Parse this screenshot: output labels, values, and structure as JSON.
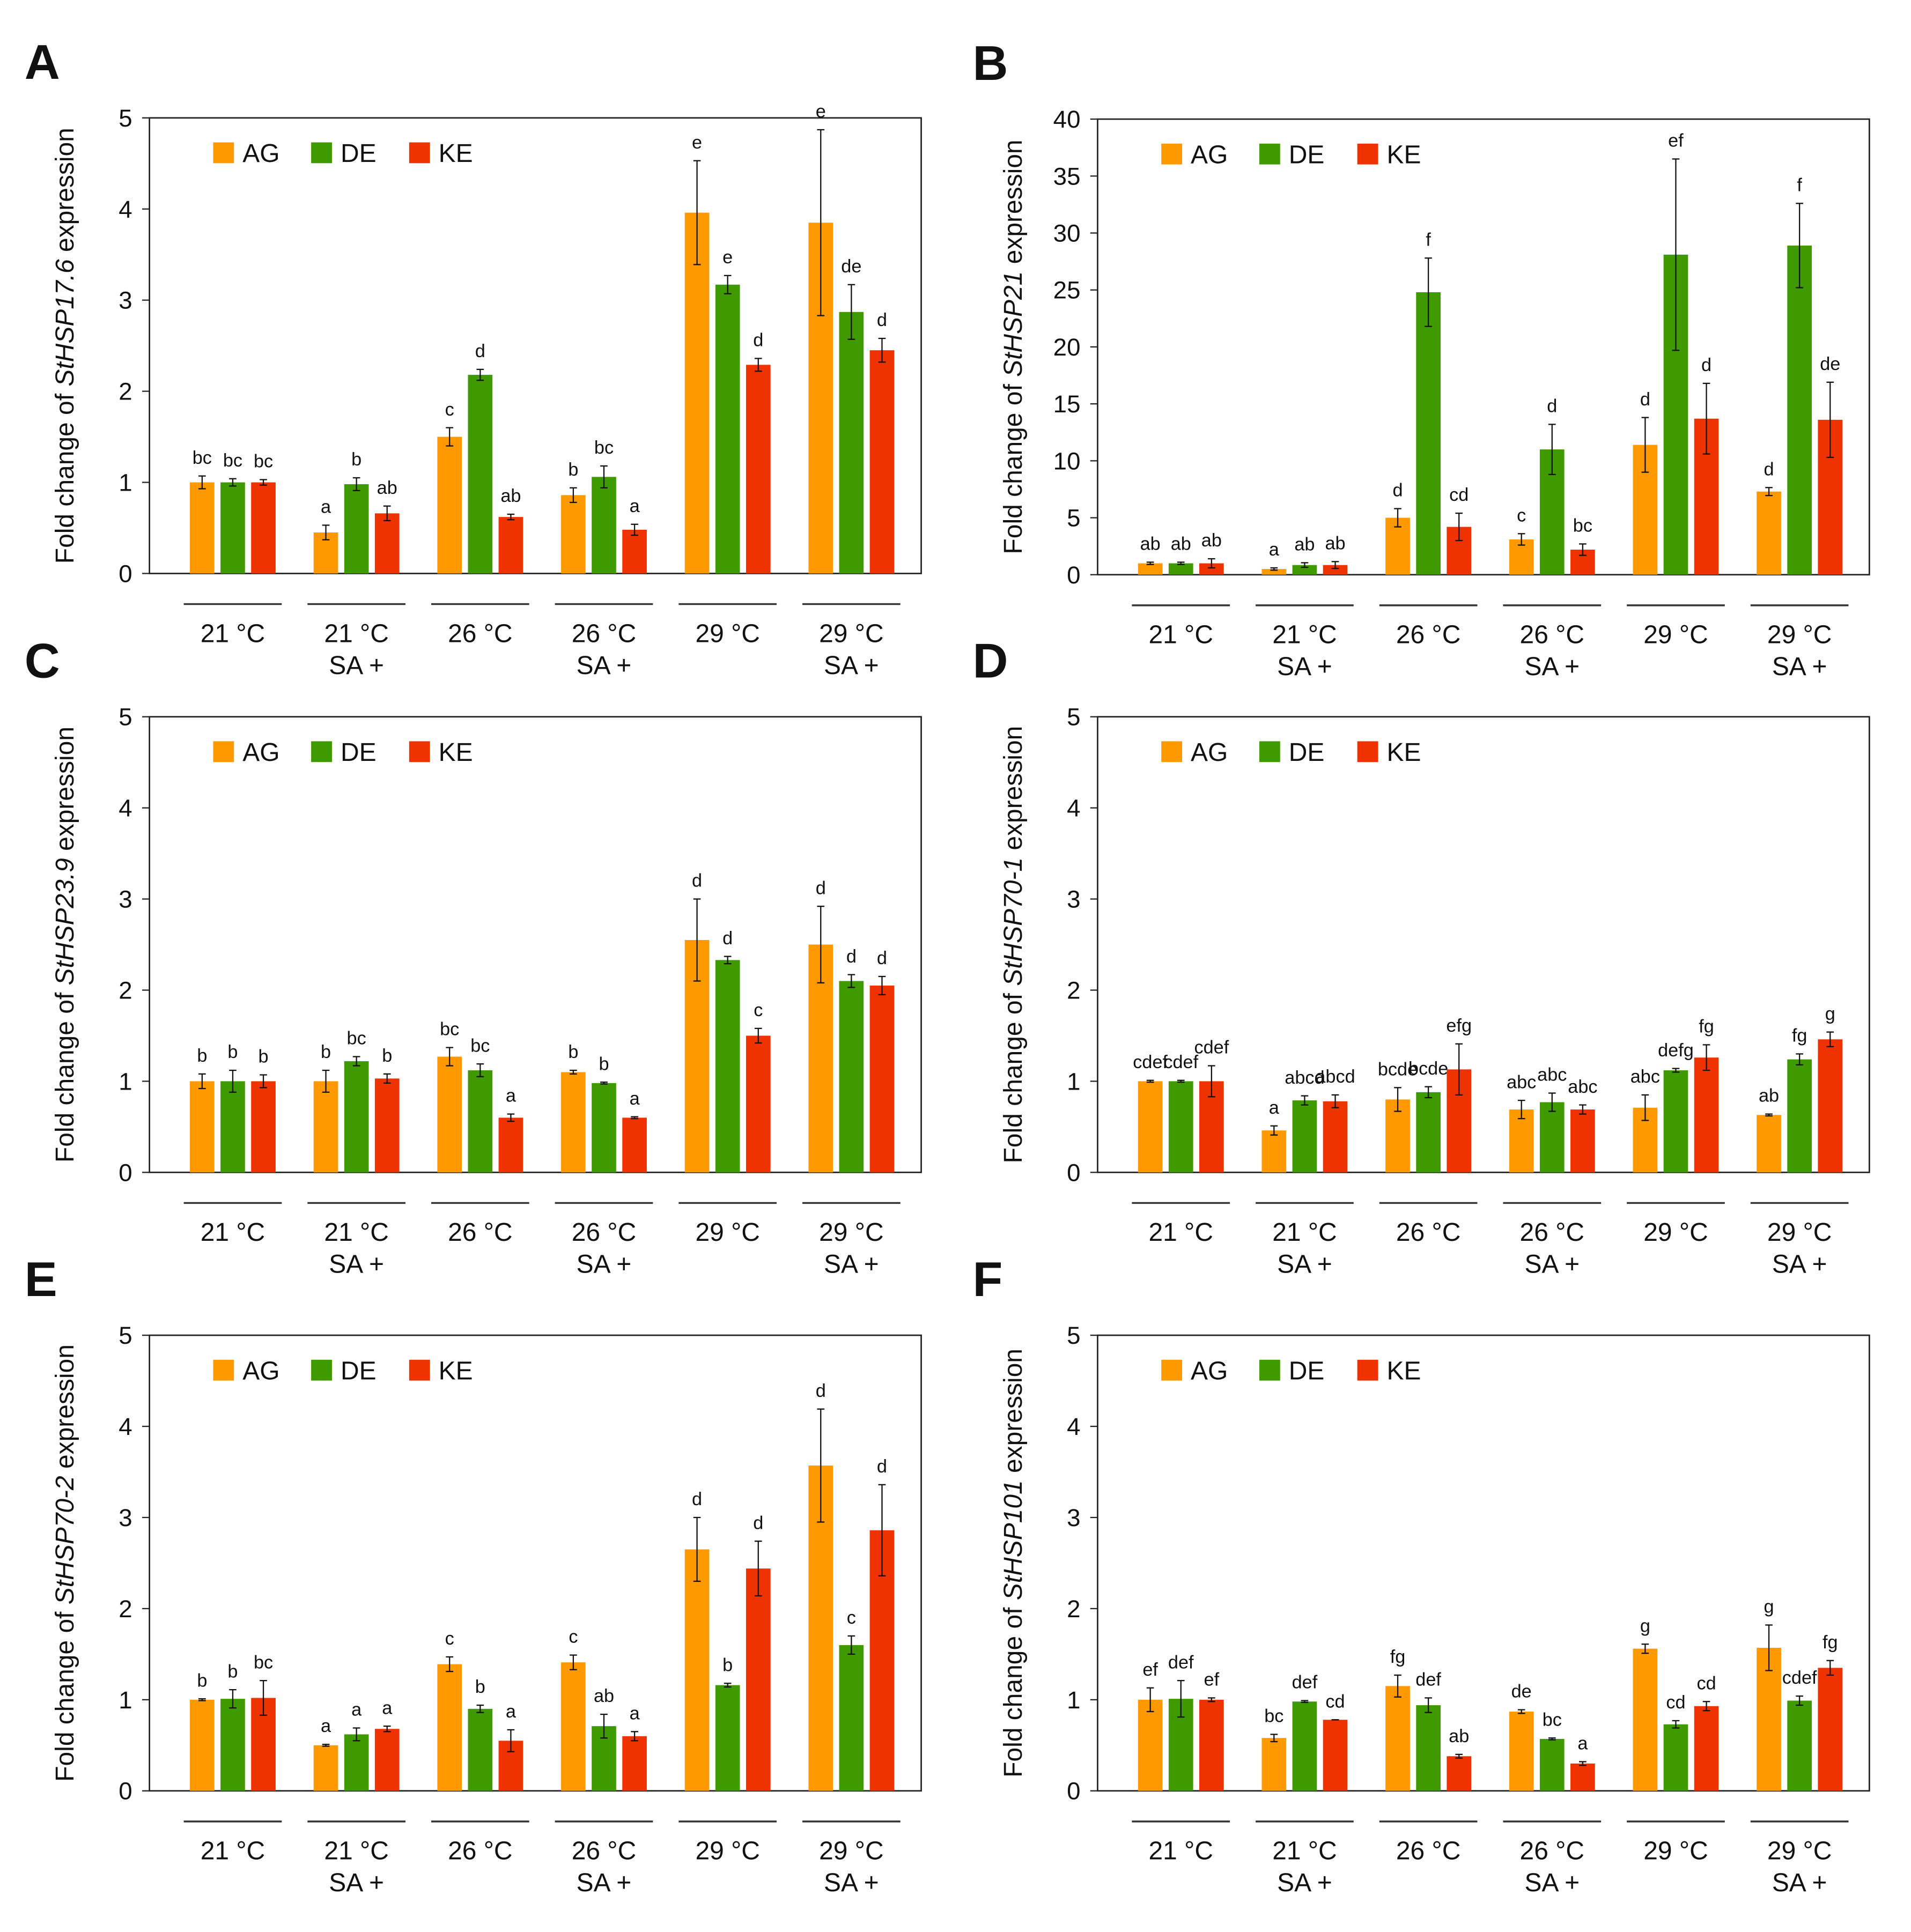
{
  "colors": {
    "AG": "#FF9900",
    "DE": "#3F9A00",
    "KE": "#EE3300"
  },
  "series_names": [
    "AG",
    "DE",
    "KE"
  ],
  "categories": [
    [
      "21 °C",
      ""
    ],
    [
      "21 °C",
      "SA +"
    ],
    [
      "26 °C",
      ""
    ],
    [
      "26 °C",
      "SA +"
    ],
    [
      "29 °C",
      ""
    ],
    [
      "29 °C",
      "SA +"
    ]
  ],
  "chart_data": [
    {
      "panel": "A",
      "type": "bar",
      "ylabel_prefix": "Fold change of ",
      "gene": "StHSP17.6",
      "ylabel_suffix": " expression",
      "ylim": [
        0,
        5
      ],
      "yticks": [
        0,
        1,
        2,
        3,
        4,
        5
      ],
      "series": [
        {
          "name": "AG",
          "values": [
            1.0,
            0.45,
            1.5,
            0.86,
            3.96,
            3.85
          ],
          "errors": [
            0.07,
            0.08,
            0.1,
            0.08,
            0.57,
            1.02
          ],
          "letters": [
            "bc",
            "a",
            "c",
            "b",
            "e",
            "e"
          ]
        },
        {
          "name": "DE",
          "values": [
            1.0,
            0.98,
            2.18,
            1.06,
            3.17,
            2.87
          ],
          "errors": [
            0.04,
            0.07,
            0.06,
            0.12,
            0.1,
            0.3
          ],
          "letters": [
            "bc",
            "b",
            "d",
            "bc",
            "e",
            "de"
          ]
        },
        {
          "name": "KE",
          "values": [
            1.0,
            0.66,
            0.62,
            0.48,
            2.29,
            2.45
          ],
          "errors": [
            0.03,
            0.08,
            0.03,
            0.06,
            0.07,
            0.13
          ],
          "letters": [
            "bc",
            "ab",
            "ab",
            "a",
            "d",
            "d"
          ]
        }
      ]
    },
    {
      "panel": "B",
      "type": "bar",
      "ylabel_prefix": "Fold change of ",
      "gene": "StHSP21",
      "ylabel_suffix": " expression",
      "ylim": [
        0,
        40
      ],
      "yticks": [
        0,
        5,
        10,
        15,
        20,
        25,
        30,
        35,
        40
      ],
      "series": [
        {
          "name": "AG",
          "values": [
            1.0,
            0.5,
            5.0,
            3.1,
            11.4,
            7.3
          ],
          "errors": [
            0.1,
            0.1,
            0.8,
            0.5,
            2.4,
            0.35
          ],
          "letters": [
            "ab",
            "a",
            "d",
            "c",
            "d",
            "d"
          ]
        },
        {
          "name": "DE",
          "values": [
            1.0,
            0.85,
            24.8,
            11.0,
            28.1,
            28.9
          ],
          "errors": [
            0.1,
            0.2,
            3.0,
            2.2,
            8.4,
            3.7
          ],
          "letters": [
            "ab",
            "ab",
            "f",
            "d",
            "ef",
            "f"
          ]
        },
        {
          "name": "KE",
          "values": [
            1.0,
            0.85,
            4.2,
            2.2,
            13.7,
            13.6
          ],
          "errors": [
            0.4,
            0.3,
            1.2,
            0.5,
            3.1,
            3.3
          ],
          "letters": [
            "ab",
            "ab",
            "cd",
            "bc",
            "d",
            "de"
          ]
        }
      ]
    },
    {
      "panel": "C",
      "type": "bar",
      "ylabel_prefix": "Fold change of ",
      "gene": "StHSP23.9",
      "ylabel_suffix": " expression",
      "ylim": [
        0,
        5
      ],
      "yticks": [
        0,
        1,
        2,
        3,
        4,
        5
      ],
      "series": [
        {
          "name": "AG",
          "values": [
            1.0,
            1.0,
            1.27,
            1.1,
            2.55,
            2.5
          ],
          "errors": [
            0.08,
            0.12,
            0.1,
            0.02,
            0.45,
            0.42
          ],
          "letters": [
            "b",
            "b",
            "bc",
            "b",
            "d",
            "d"
          ]
        },
        {
          "name": "DE",
          "values": [
            1.0,
            1.22,
            1.12,
            0.98,
            2.33,
            2.1
          ],
          "errors": [
            0.12,
            0.05,
            0.07,
            0.01,
            0.04,
            0.07
          ],
          "letters": [
            "b",
            "bc",
            "bc",
            "b",
            "d",
            "d"
          ]
        },
        {
          "name": "KE",
          "values": [
            1.0,
            1.03,
            0.6,
            0.6,
            1.5,
            2.05
          ],
          "errors": [
            0.07,
            0.05,
            0.04,
            0.01,
            0.08,
            0.1
          ],
          "letters": [
            "b",
            "b",
            "a",
            "a",
            "c",
            "d"
          ]
        }
      ]
    },
    {
      "panel": "D",
      "type": "bar",
      "ylabel_prefix": "Fold change of ",
      "gene": "StHSP70-1",
      "ylabel_suffix": " expression",
      "ylim": [
        0,
        5
      ],
      "yticks": [
        0,
        1,
        2,
        3,
        4,
        5
      ],
      "series": [
        {
          "name": "AG",
          "values": [
            1.0,
            0.46,
            0.8,
            0.69,
            0.71,
            0.63
          ],
          "errors": [
            0.01,
            0.05,
            0.13,
            0.1,
            0.14,
            0.01
          ],
          "letters": [
            "cdef",
            "a",
            "bcde",
            "abc",
            "abc",
            "ab"
          ]
        },
        {
          "name": "DE",
          "values": [
            1.0,
            0.79,
            0.88,
            0.77,
            1.12,
            1.24
          ],
          "errors": [
            0.01,
            0.05,
            0.06,
            0.1,
            0.02,
            0.06
          ],
          "letters": [
            "cdef",
            "abcd",
            "bcde",
            "abc",
            "defg",
            "fg"
          ]
        },
        {
          "name": "KE",
          "values": [
            1.0,
            0.78,
            1.13,
            0.69,
            1.26,
            1.46
          ],
          "errors": [
            0.17,
            0.07,
            0.28,
            0.05,
            0.14,
            0.08
          ],
          "letters": [
            "cdef",
            "abcd",
            "efg",
            "abc",
            "fg",
            "g"
          ]
        }
      ]
    },
    {
      "panel": "E",
      "type": "bar",
      "ylabel_prefix": "Fold change of ",
      "gene": "StHSP70-2",
      "ylabel_suffix": " expression",
      "ylim": [
        0,
        5
      ],
      "yticks": [
        0,
        1,
        2,
        3,
        4,
        5
      ],
      "series": [
        {
          "name": "AG",
          "values": [
            1.0,
            0.5,
            1.39,
            1.41,
            2.65,
            3.57
          ],
          "errors": [
            0.01,
            0.01,
            0.08,
            0.08,
            0.35,
            0.62
          ],
          "letters": [
            "b",
            "a",
            "c",
            "c",
            "d",
            "d"
          ]
        },
        {
          "name": "DE",
          "values": [
            1.01,
            0.62,
            0.9,
            0.71,
            1.16,
            1.6
          ],
          "errors": [
            0.1,
            0.07,
            0.04,
            0.13,
            0.02,
            0.1
          ],
          "letters": [
            "b",
            "a",
            "b",
            "ab",
            "b",
            "c"
          ]
        },
        {
          "name": "KE",
          "values": [
            1.02,
            0.68,
            0.55,
            0.6,
            2.44,
            2.86
          ],
          "errors": [
            0.19,
            0.03,
            0.12,
            0.05,
            0.3,
            0.5
          ],
          "letters": [
            "bc",
            "a",
            "a",
            "a",
            "d",
            "d"
          ]
        }
      ]
    },
    {
      "panel": "F",
      "type": "bar",
      "ylabel_prefix": "Fold change of ",
      "gene": "StHSP101",
      "ylabel_suffix": " expression",
      "ylim": [
        0,
        5
      ],
      "yticks": [
        0,
        1,
        2,
        3,
        4,
        5
      ],
      "series": [
        {
          "name": "AG",
          "values": [
            1.0,
            0.58,
            1.15,
            0.87,
            1.56,
            1.57
          ],
          "errors": [
            0.13,
            0.04,
            0.12,
            0.02,
            0.05,
            0.25
          ],
          "letters": [
            "ef",
            "bc",
            "fg",
            "de",
            "g",
            "g"
          ]
        },
        {
          "name": "DE",
          "values": [
            1.01,
            0.98,
            0.94,
            0.57,
            0.73,
            0.99
          ],
          "errors": [
            0.2,
            0.01,
            0.08,
            0.01,
            0.04,
            0.05
          ],
          "letters": [
            "def",
            "def",
            "def",
            "bc",
            "cd",
            "cdef"
          ]
        },
        {
          "name": "KE",
          "values": [
            1.0,
            0.78,
            0.38,
            0.3,
            0.93,
            1.35
          ],
          "errors": [
            0.02,
            0.0,
            0.02,
            0.02,
            0.05,
            0.08
          ],
          "letters": [
            "ef",
            "cd",
            "ab",
            "a",
            "cd",
            "fg"
          ]
        }
      ]
    }
  ]
}
